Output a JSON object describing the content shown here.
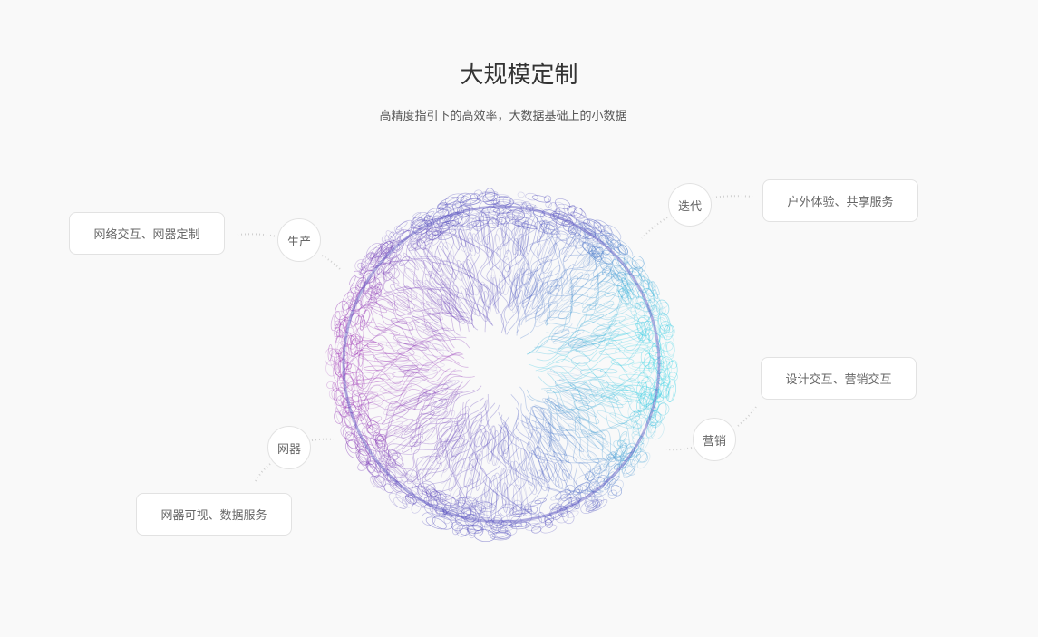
{
  "header": {
    "title": "大规模定制",
    "subtitle": "高精度指引下的高效率，大数据基础上的小数据"
  },
  "nodes": [
    {
      "label": "生产",
      "description": "网络交互、网器定制"
    },
    {
      "label": "迭代",
      "description": "户外体验、共享服务"
    },
    {
      "label": "营销",
      "description": "设计交互、营销交互"
    },
    {
      "label": "网器",
      "description": "网器可视、数据服务"
    }
  ],
  "sphere": {
    "colors": {
      "left": "#a23ab8",
      "right": "#3fd6e6",
      "rim": "#5a55c0"
    }
  }
}
